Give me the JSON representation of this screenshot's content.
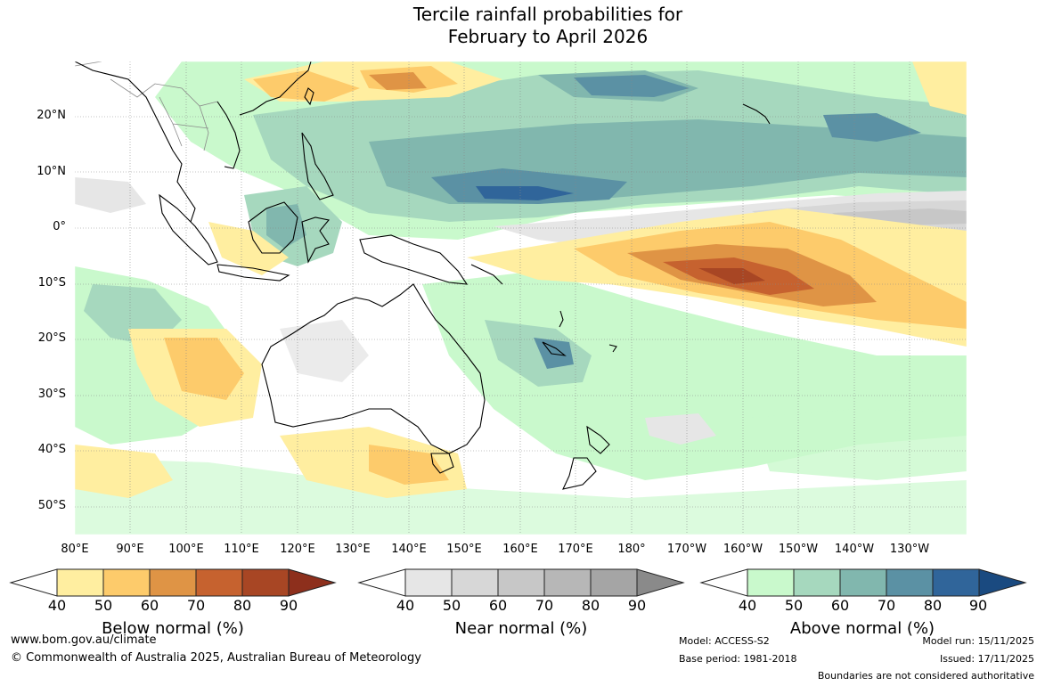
{
  "title": {
    "line1": "Tercile rainfall probabilities for",
    "line2": "February to April 2026"
  },
  "map": {
    "region": "Australia and western/central Pacific",
    "lat_labels": [
      "20°N",
      "10°N",
      "0°",
      "10°S",
      "20°S",
      "30°S",
      "40°S",
      "50°S"
    ],
    "lon_labels": [
      "80°E",
      "90°E",
      "100°E",
      "110°E",
      "120°E",
      "130°E",
      "140°E",
      "150°E",
      "160°E",
      "170°E",
      "180°",
      "170°W",
      "160°W",
      "150°W",
      "140°W",
      "130°W"
    ],
    "colors": {
      "below": [
        "#ffffff",
        "#ffeea0",
        "#fdcb6b",
        "#df9445",
        "#c6622f",
        "#a84624",
        "#8d2f1c"
      ],
      "near": [
        "#ffffff",
        "#e6e6e6",
        "#d7d7d7",
        "#c7c7c7",
        "#b7b7b7",
        "#a5a5a5",
        "#8a8a8a"
      ],
      "above": [
        "#ffffff",
        "#c9f9cc",
        "#a6d8be",
        "#81b7ae",
        "#5b91a4",
        "#30659a",
        "#1a4a80"
      ],
      "coast": "#000000",
      "border": "#8a8a8a",
      "grid": "#888888"
    }
  },
  "legends": [
    {
      "title": "Below normal (%)",
      "ticks": [
        "40",
        "50",
        "60",
        "70",
        "80",
        "90"
      ]
    },
    {
      "title": "Near normal (%)",
      "ticks": [
        "40",
        "50",
        "60",
        "70",
        "80",
        "90"
      ]
    },
    {
      "title": "Above normal (%)",
      "ticks": [
        "40",
        "50",
        "60",
        "70",
        "80",
        "90"
      ]
    }
  ],
  "footer": {
    "website": "www.bom.gov.au/climate",
    "copyright": "© Commonwealth of Australia 2025, Australian Bureau of Meteorology",
    "model": "Model: ACCESS-S2",
    "base_period": "Base period: 1981-2018",
    "model_run": "Model run: 15/11/2025",
    "issued": "Issued: 17/11/2025",
    "disclaimer": "Boundaries are not considered authoritative"
  }
}
